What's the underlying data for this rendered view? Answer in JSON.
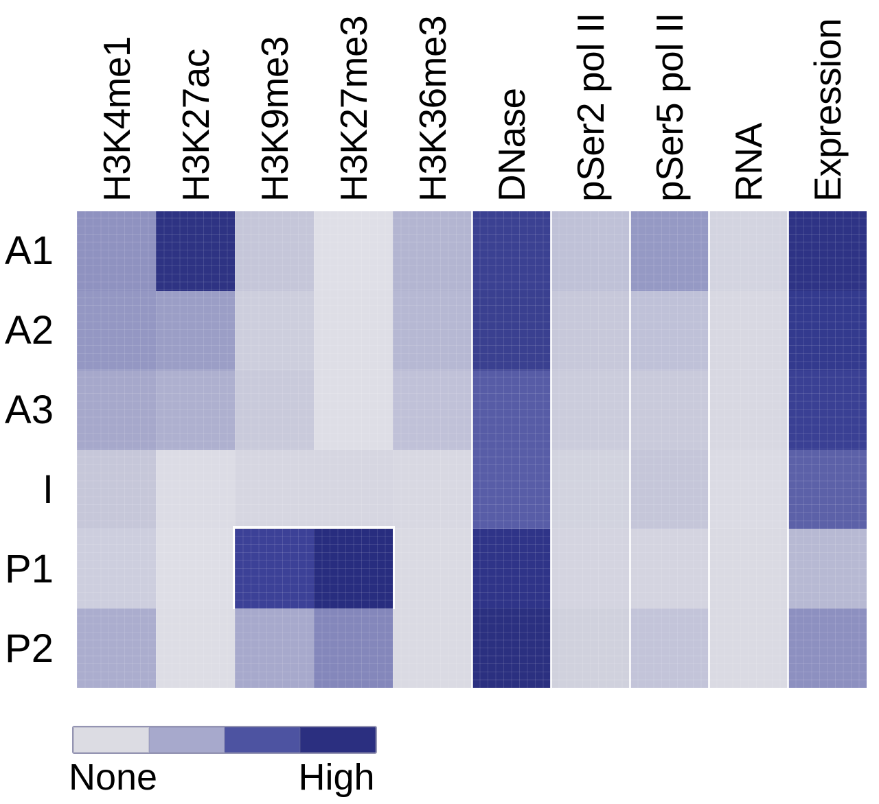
{
  "chart_data": {
    "type": "heatmap",
    "title": "",
    "x_categories": [
      "H3K4me1",
      "H3K27ac",
      "H3K9me3",
      "H3K27me3",
      "H3K36me3",
      "DNase",
      "pSer2 pol II",
      "pSer5 pol II",
      "RNA",
      "Expression"
    ],
    "y_categories": [
      "A1",
      "A2",
      "A3",
      "I",
      "P1",
      "P2"
    ],
    "values": [
      [
        0.55,
        0.95,
        0.22,
        0.03,
        0.35,
        0.88,
        0.3,
        0.52,
        0.14,
        0.94
      ],
      [
        0.5,
        0.47,
        0.17,
        0.04,
        0.33,
        0.87,
        0.25,
        0.29,
        0.09,
        0.91
      ],
      [
        0.42,
        0.37,
        0.2,
        0.04,
        0.26,
        0.74,
        0.23,
        0.2,
        0.09,
        0.89
      ],
      [
        0.23,
        0.06,
        0.11,
        0.11,
        0.09,
        0.73,
        0.13,
        0.22,
        0.07,
        0.7
      ],
      [
        0.19,
        0.04,
        0.86,
        0.99,
        0.08,
        0.93,
        0.11,
        0.11,
        0.08,
        0.32
      ],
      [
        0.4,
        0.05,
        0.44,
        0.6,
        0.08,
        0.96,
        0.14,
        0.27,
        0.08,
        0.55
      ]
    ],
    "cell_colors": [
      [
        "#8f92c0",
        "#2e3383",
        "#c5c6d9",
        "#dfdfe7",
        "#b3b5d1",
        "#3b4192",
        "#bfc1d7",
        "#9599c4",
        "#d3d4e0",
        "#2e3385"
      ],
      [
        "#9497c3",
        "#9b9ec6",
        "#cdcedd",
        "#dedee6",
        "#b6b8d3",
        "#3a4090",
        "#c7c8da",
        "#bfc1d8",
        "#d8d8e2",
        "#333a8e"
      ],
      [
        "#a6a8cb",
        "#aeb0cf",
        "#c9cadb",
        "#dedee6",
        "#c0c1d8",
        "#575ca6",
        "#cbccdc",
        "#c9cadb",
        "#d8d8e2",
        "#3a4094"
      ],
      [
        "#c6c7d9",
        "#dcdce5",
        "#d6d6e1",
        "#d6d6e1",
        "#d8d8e2",
        "#585da7",
        "#d2d3df",
        "#c5c6d9",
        "#dbdbe4",
        "#5c61a8"
      ],
      [
        "#cdcede",
        "#dedee6",
        "#3c4197",
        "#282d7f",
        "#dadae3",
        "#2f3488",
        "#d4d4e0",
        "#d4d4e0",
        "#dadae3",
        "#b7b9d3"
      ],
      [
        "#abadce",
        "#dddde5",
        "#a7a9cc",
        "#8487bb",
        "#dadae3",
        "#2b3080",
        "#d0d1dd",
        "#c3c4d9",
        "#dadae3",
        "#8d90c0"
      ]
    ],
    "value_scale": {
      "min": 0,
      "max": 1,
      "min_label": "None",
      "max_label": "High"
    },
    "legend": {
      "position": "bottom-left",
      "labels": {
        "min": "None",
        "max": "High"
      },
      "swatch_colors": [
        "#dcdce3",
        "#a7a9cc",
        "#4d53a1",
        "#2b2f80"
      ]
    },
    "grid": "off",
    "layout_hints": {
      "white_column_separators_after": [
        "H3K36me3",
        "DNase",
        "pSer2 pol II",
        "pSer5 pol II",
        "RNA"
      ],
      "white_outline_block": {
        "row": "P1",
        "columns": [
          "H3K9me3",
          "H3K27me3"
        ]
      }
    }
  },
  "colors": {
    "background": "#ffffff",
    "text": "#000000",
    "separator": "#ffffff"
  }
}
